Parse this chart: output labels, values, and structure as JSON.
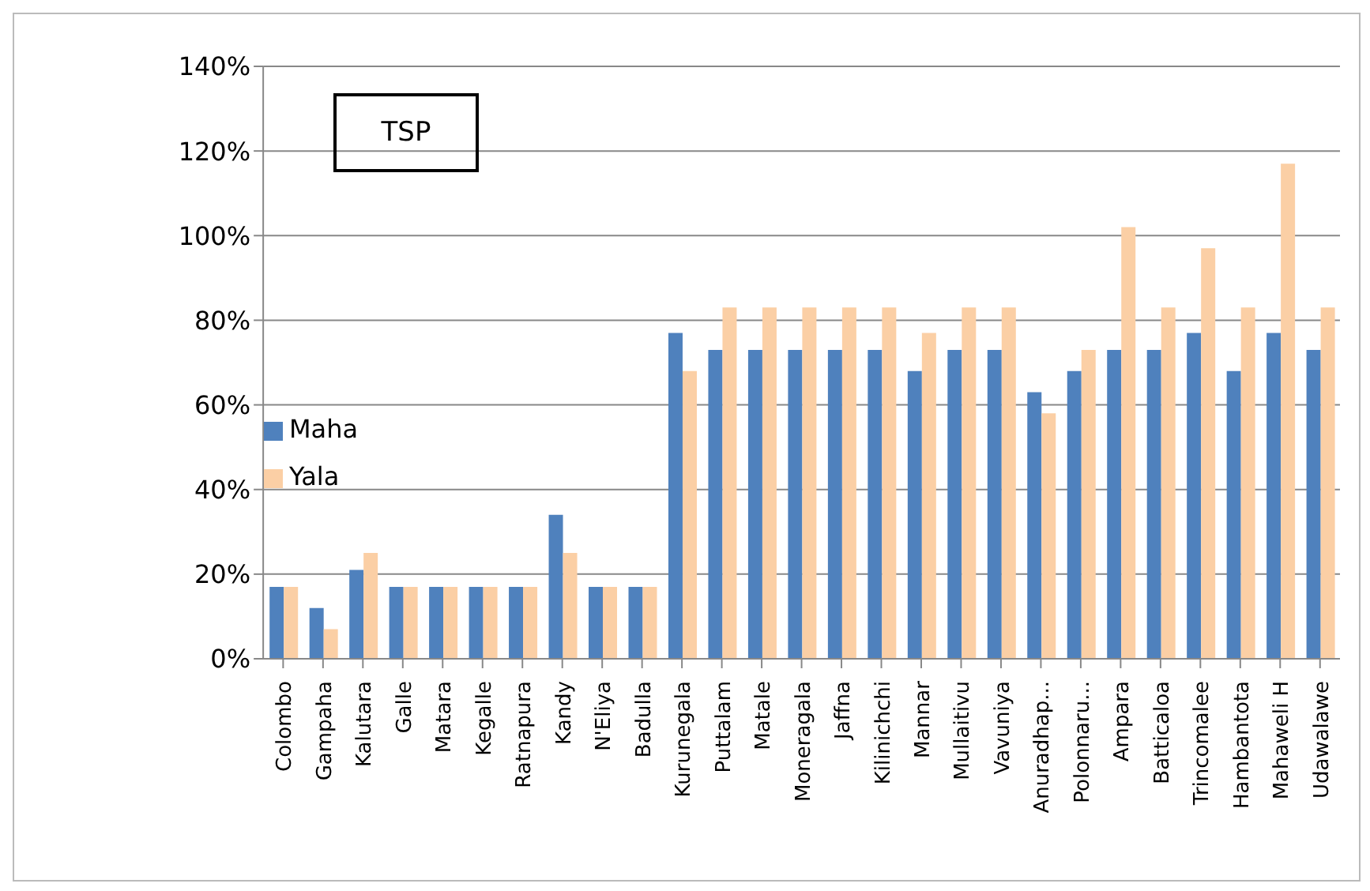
{
  "chart_data": {
    "type": "bar",
    "title": "TSP",
    "categories": [
      "Colombo",
      "Gampaha",
      "Kalutara",
      "Galle",
      "Matara",
      "Kegalle",
      "Ratnapura",
      "Kandy",
      "N'Eliya",
      "Badulla",
      "Kurunegala",
      "Puttalam",
      "Matale",
      "Moneragala",
      "Jaffna",
      "Kilinichchi",
      "Mannar",
      "Mullaitivu",
      "Vavuniya",
      "Anuradhap...",
      "Polonnaru...",
      "Ampara",
      "Batticaloa",
      "Trincomalee",
      "Hambantota",
      "Mahaweli H",
      "Udawalawe"
    ],
    "series": [
      {
        "name": "Maha",
        "color": "#4f81bd",
        "values": [
          17,
          12,
          21,
          17,
          17,
          17,
          17,
          34,
          17,
          17,
          77,
          73,
          73,
          73,
          73,
          73,
          68,
          73,
          73,
          63,
          68,
          73,
          73,
          77,
          68,
          77,
          73
        ]
      },
      {
        "name": "Yala",
        "color": "#fbcfa5",
        "values": [
          17,
          7,
          25,
          17,
          17,
          17,
          17,
          25,
          17,
          17,
          68,
          83,
          83,
          83,
          83,
          83,
          77,
          83,
          83,
          58,
          73,
          102,
          83,
          97,
          83,
          117,
          83
        ]
      }
    ],
    "ylim": [
      0,
      140
    ],
    "yticks": [
      {
        "value": 0,
        "label": "0%"
      },
      {
        "value": 20,
        "label": "20%"
      },
      {
        "value": 40,
        "label": "40%"
      },
      {
        "value": 60,
        "label": "60%"
      },
      {
        "value": 80,
        "label": "80%"
      },
      {
        "value": 100,
        "label": "100%"
      },
      {
        "value": 120,
        "label": "120%"
      },
      {
        "value": 140,
        "label": "140%"
      }
    ],
    "grid": "y",
    "legend": "left"
  }
}
